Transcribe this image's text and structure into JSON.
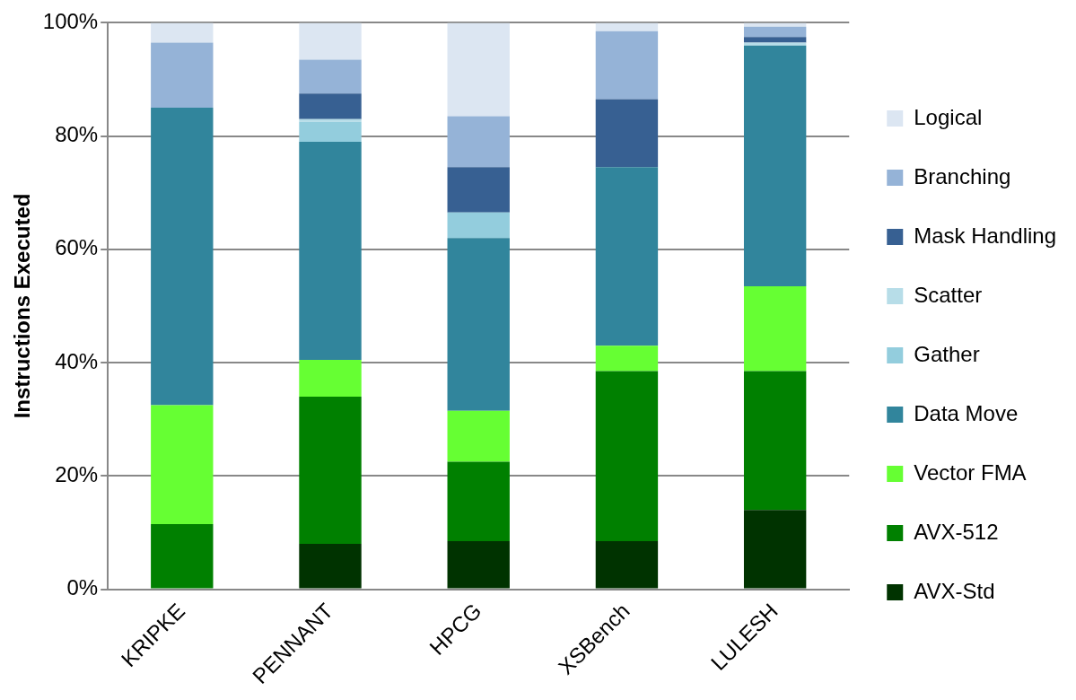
{
  "chart_data": {
    "type": "bar",
    "stacked": true,
    "ylabel": "Instructions Executed",
    "categories": [
      "KRIPKE",
      "PENNANT",
      "HPCG",
      "XSBench",
      "LULESH"
    ],
    "series": [
      {
        "name": "AVX-Std",
        "color": "#003300",
        "values": [
          0,
          8,
          8.5,
          8.5,
          14
        ]
      },
      {
        "name": "AVX-512",
        "color": "#008000",
        "values": [
          11.5,
          26,
          14,
          30,
          24.5
        ]
      },
      {
        "name": "Vector FMA",
        "color": "#66ff33",
        "values": [
          21,
          6.5,
          9,
          4.5,
          15
        ]
      },
      {
        "name": "Data Move",
        "color": "#31859c",
        "values": [
          52.5,
          38.5,
          30.5,
          31.5,
          42.5
        ]
      },
      {
        "name": "Gather",
        "color": "#93cddd",
        "values": [
          0,
          3.5,
          4.5,
          0,
          0
        ]
      },
      {
        "name": "Scatter",
        "color": "#b7dde8",
        "values": [
          0,
          0.5,
          0,
          0,
          0.5
        ]
      },
      {
        "name": "Mask Handling",
        "color": "#376092",
        "values": [
          0,
          4.5,
          8,
          12,
          1
        ]
      },
      {
        "name": "Branching",
        "color": "#95b3d7",
        "values": [
          11.5,
          6,
          9,
          12,
          1.8
        ]
      },
      {
        "name": "Logical",
        "color": "#dce6f2",
        "values": [
          3.5,
          6.5,
          16.5,
          1.5,
          0.7
        ]
      }
    ],
    "ylim": [
      0,
      100
    ],
    "yticks": [
      {
        "value": 0,
        "label": "0%"
      },
      {
        "value": 20,
        "label": "20%"
      },
      {
        "value": 40,
        "label": "40%"
      },
      {
        "value": 60,
        "label": "60%"
      },
      {
        "value": 80,
        "label": "80%"
      },
      {
        "value": 100,
        "label": "100%"
      }
    ],
    "grid": "y",
    "legend": "right"
  }
}
